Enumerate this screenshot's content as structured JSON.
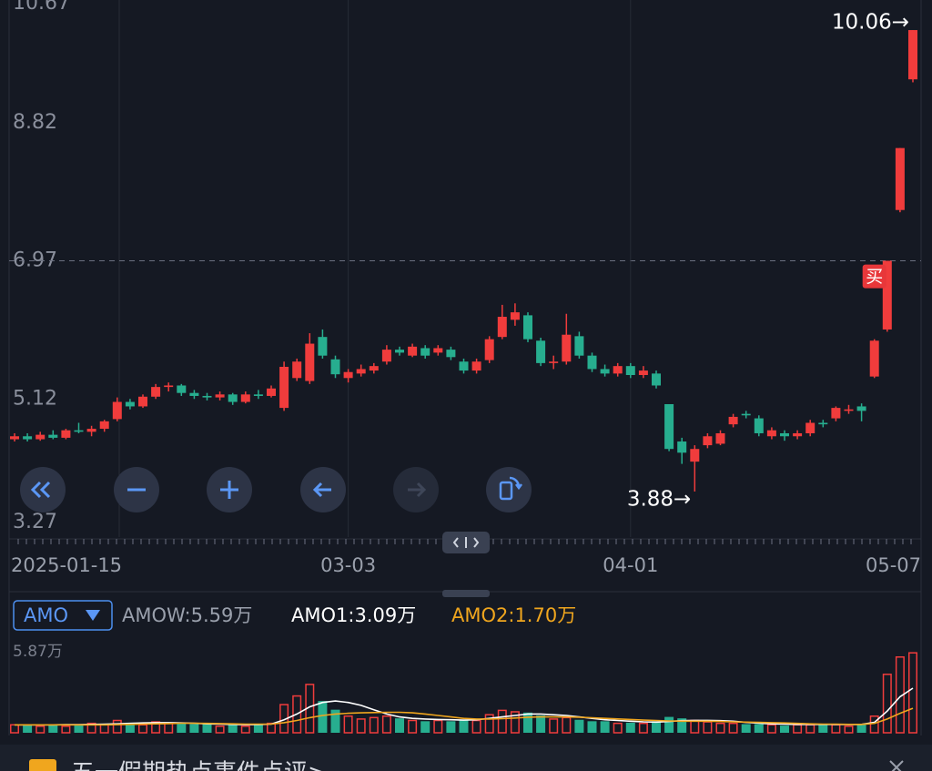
{
  "chart_data": [
    {
      "type": "candlestick",
      "categories": [
        "2025-01-15",
        null,
        null,
        null,
        null,
        null,
        null,
        null,
        null,
        null,
        null,
        null,
        null,
        null,
        null,
        null,
        null,
        null,
        null,
        null,
        null,
        null,
        null,
        null,
        null,
        null,
        "03-03",
        null,
        null,
        null,
        null,
        null,
        null,
        null,
        null,
        null,
        null,
        null,
        null,
        null,
        null,
        null,
        null,
        null,
        null,
        null,
        null,
        null,
        "04-01",
        null,
        null,
        null,
        null,
        null,
        null,
        null,
        null,
        null,
        null,
        null,
        null,
        null,
        null,
        null,
        null,
        null,
        null,
        null,
        null,
        null,
        "05-07"
      ],
      "candles": [
        [
          4.58,
          4.66,
          4.55,
          4.62
        ],
        [
          4.62,
          4.66,
          4.55,
          4.58
        ],
        [
          4.58,
          4.68,
          4.56,
          4.64
        ],
        [
          4.64,
          4.7,
          4.58,
          4.6
        ],
        [
          4.6,
          4.72,
          4.58,
          4.7
        ],
        [
          4.7,
          4.8,
          4.66,
          4.68
        ],
        [
          4.68,
          4.76,
          4.62,
          4.72
        ],
        [
          4.72,
          4.84,
          4.68,
          4.82
        ],
        [
          4.85,
          5.14,
          4.82,
          5.08
        ],
        [
          5.08,
          5.12,
          4.98,
          5.02
        ],
        [
          5.02,
          5.18,
          5.0,
          5.15
        ],
        [
          5.15,
          5.32,
          5.12,
          5.28
        ],
        [
          5.28,
          5.34,
          5.22,
          5.3
        ],
        [
          5.3,
          5.32,
          5.16,
          5.2
        ],
        [
          5.2,
          5.24,
          5.12,
          5.16
        ],
        [
          5.16,
          5.2,
          5.1,
          5.14
        ],
        [
          5.14,
          5.22,
          5.1,
          5.18
        ],
        [
          5.18,
          5.2,
          5.04,
          5.08
        ],
        [
          5.08,
          5.22,
          5.06,
          5.18
        ],
        [
          5.18,
          5.24,
          5.12,
          5.16
        ],
        [
          5.16,
          5.3,
          5.14,
          5.26
        ],
        [
          5.0,
          5.62,
          4.96,
          5.55
        ],
        [
          5.4,
          5.66,
          5.36,
          5.62
        ],
        [
          5.36,
          6.0,
          5.32,
          5.86
        ],
        [
          5.95,
          6.05,
          5.66,
          5.7
        ],
        [
          5.65,
          5.7,
          5.4,
          5.45
        ],
        [
          5.4,
          5.52,
          5.34,
          5.48
        ],
        [
          5.46,
          5.58,
          5.42,
          5.52
        ],
        [
          5.5,
          5.6,
          5.46,
          5.56
        ],
        [
          5.62,
          5.84,
          5.58,
          5.78
        ],
        [
          5.78,
          5.82,
          5.7,
          5.74
        ],
        [
          5.7,
          5.86,
          5.68,
          5.82
        ],
        [
          5.8,
          5.84,
          5.66,
          5.7
        ],
        [
          5.74,
          5.84,
          5.7,
          5.8
        ],
        [
          5.78,
          5.82,
          5.64,
          5.68
        ],
        [
          5.62,
          5.66,
          5.46,
          5.5
        ],
        [
          5.5,
          5.66,
          5.46,
          5.62
        ],
        [
          5.64,
          5.96,
          5.6,
          5.92
        ],
        [
          5.95,
          6.38,
          5.92,
          6.22
        ],
        [
          6.18,
          6.4,
          6.1,
          6.28
        ],
        [
          6.24,
          6.28,
          5.88,
          5.92
        ],
        [
          5.9,
          5.94,
          5.56,
          5.6
        ],
        [
          5.6,
          5.7,
          5.52,
          5.62
        ],
        [
          5.62,
          6.26,
          5.58,
          5.98
        ],
        [
          5.96,
          6.02,
          5.66,
          5.7
        ],
        [
          5.7,
          5.74,
          5.48,
          5.52
        ],
        [
          5.52,
          5.58,
          5.42,
          5.46
        ],
        [
          5.46,
          5.6,
          5.42,
          5.56
        ],
        [
          5.56,
          5.6,
          5.4,
          5.44
        ],
        [
          5.44,
          5.56,
          5.4,
          5.5
        ],
        [
          5.46,
          5.5,
          5.26,
          5.3
        ],
        [
          5.05,
          5.05,
          4.42,
          4.45
        ],
        [
          4.55,
          4.6,
          4.25,
          4.4
        ],
        [
          4.28,
          4.5,
          3.88,
          4.45
        ],
        [
          4.5,
          4.66,
          4.46,
          4.62
        ],
        [
          4.52,
          4.7,
          4.5,
          4.66
        ],
        [
          4.78,
          4.92,
          4.74,
          4.88
        ],
        [
          4.92,
          4.96,
          4.86,
          4.9
        ],
        [
          4.86,
          4.9,
          4.62,
          4.66
        ],
        [
          4.62,
          4.74,
          4.58,
          4.7
        ],
        [
          4.66,
          4.7,
          4.56,
          4.62
        ],
        [
          4.62,
          4.7,
          4.58,
          4.66
        ],
        [
          4.66,
          4.84,
          4.62,
          4.8
        ],
        [
          4.8,
          4.84,
          4.74,
          4.78
        ],
        [
          4.86,
          5.02,
          4.82,
          5.0
        ],
        [
          4.96,
          5.04,
          4.92,
          4.98
        ],
        [
          5.02,
          5.06,
          4.82,
          4.96
        ],
        [
          5.42,
          5.92,
          5.4,
          5.9
        ],
        [
          6.05,
          6.97,
          6.02,
          6.97
        ],
        [
          7.65,
          8.48,
          7.62,
          8.48
        ],
        [
          9.4,
          10.06,
          9.36,
          10.06
        ]
      ],
      "up_color": "#f03c3c",
      "down_color": "#27ae8f",
      "ylim": [
        3.27,
        10.67
      ],
      "yticks": [
        3.27,
        5.12,
        6.97,
        8.82,
        10.67
      ],
      "reference_line": 6.97,
      "annotations": [
        {
          "value": 10.06,
          "label": "10.06→"
        },
        {
          "value": 3.88,
          "label": "3.88→"
        }
      ],
      "signal": {
        "label": "买",
        "index": 67
      }
    },
    {
      "type": "bar",
      "indicator": "AMO",
      "current_label": "AMOW:5.59万",
      "values": [
        0.6,
        0.5,
        0.5,
        0.6,
        0.5,
        0.6,
        0.7,
        0.6,
        0.9,
        0.7,
        0.6,
        0.8,
        0.7,
        0.7,
        0.6,
        0.6,
        0.5,
        0.6,
        0.5,
        0.6,
        0.7,
        2.0,
        2.6,
        3.4,
        2.2,
        1.6,
        1.2,
        1.0,
        1.1,
        1.2,
        1.0,
        0.9,
        0.8,
        0.9,
        0.8,
        0.9,
        0.9,
        1.3,
        1.6,
        1.5,
        1.4,
        1.2,
        1.0,
        1.1,
        0.9,
        0.8,
        0.8,
        0.7,
        0.7,
        0.7,
        0.8,
        1.1,
        1.0,
        0.9,
        0.8,
        0.7,
        0.7,
        0.6,
        0.6,
        0.6,
        0.5,
        0.6,
        0.6,
        0.6,
        0.6,
        0.5,
        0.6,
        1.2,
        4.1,
        5.3,
        5.59
      ],
      "series": [
        {
          "name": "AMO1",
          "label": "AMO1:3.09万",
          "color": "#ffffff",
          "values": [
            0.55,
            0.55,
            0.55,
            0.55,
            0.56,
            0.56,
            0.58,
            0.6,
            0.62,
            0.65,
            0.68,
            0.7,
            0.7,
            0.68,
            0.66,
            0.62,
            0.6,
            0.58,
            0.56,
            0.57,
            0.6,
            0.9,
            1.3,
            1.8,
            2.1,
            2.2,
            2.1,
            1.9,
            1.6,
            1.3,
            1.1,
            1.0,
            0.95,
            0.92,
            0.9,
            0.88,
            0.9,
            1.0,
            1.1,
            1.2,
            1.3,
            1.3,
            1.25,
            1.2,
            1.1,
            1.0,
            0.9,
            0.85,
            0.8,
            0.76,
            0.74,
            0.78,
            0.84,
            0.86,
            0.86,
            0.84,
            0.8,
            0.72,
            0.66,
            0.62,
            0.6,
            0.58,
            0.58,
            0.58,
            0.58,
            0.57,
            0.58,
            0.72,
            1.5,
            2.5,
            3.09
          ]
        },
        {
          "name": "AMO2",
          "label": "AMO2:1.70万",
          "color": "#f0a61e",
          "values": [
            0.55,
            0.55,
            0.55,
            0.55,
            0.55,
            0.55,
            0.55,
            0.55,
            0.56,
            0.58,
            0.6,
            0.62,
            0.64,
            0.66,
            0.66,
            0.65,
            0.64,
            0.62,
            0.6,
            0.6,
            0.6,
            0.7,
            0.85,
            1.05,
            1.2,
            1.3,
            1.35,
            1.38,
            1.4,
            1.42,
            1.42,
            1.38,
            1.3,
            1.2,
            1.1,
            1.0,
            0.95,
            0.95,
            0.98,
            1.02,
            1.08,
            1.1,
            1.1,
            1.1,
            1.08,
            1.04,
            1.0,
            0.96,
            0.92,
            0.88,
            0.85,
            0.82,
            0.8,
            0.8,
            0.8,
            0.78,
            0.76,
            0.74,
            0.72,
            0.7,
            0.68,
            0.65,
            0.62,
            0.6,
            0.6,
            0.58,
            0.58,
            0.65,
            0.95,
            1.35,
            1.7
          ]
        }
      ],
      "ylim": [
        0,
        5.87
      ],
      "yticks": [
        {
          "value": 5.87,
          "label": "5.87万"
        }
      ]
    }
  ],
  "banner": {
    "text": "五一假期热点事件点评>"
  }
}
